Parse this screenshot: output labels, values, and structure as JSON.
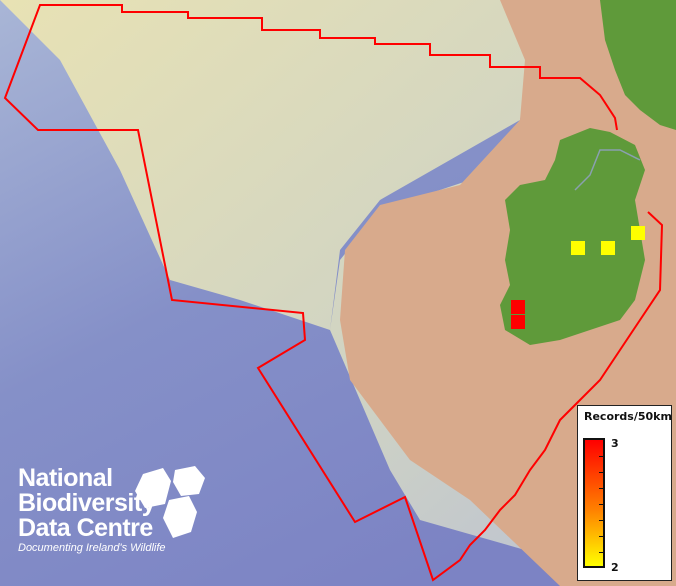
{
  "legend": {
    "title": "Records/50km",
    "max_label": "3",
    "min_label": "2",
    "color_max": "#ff0000",
    "color_min": "#ffff00"
  },
  "logo": {
    "line1": "National",
    "line2": "Biodiversity",
    "line3": "Data Centre",
    "tagline": "Documenting Ireland's Wildlife"
  },
  "records": [
    {
      "grid": "yellow-1",
      "value": 2,
      "color": "#ffff00"
    },
    {
      "grid": "yellow-2",
      "value": 2,
      "color": "#ffff00"
    },
    {
      "grid": "yellow-3",
      "value": 2,
      "color": "#ffff00"
    },
    {
      "grid": "red-1",
      "value": 3,
      "color": "#ff0000"
    },
    {
      "grid": "red-2",
      "value": 3,
      "color": "#ff0000"
    }
  ],
  "colors": {
    "boundary": "#ff0000",
    "land": "#5f9a3a",
    "seabed_shallow": "#d9a98a",
    "shelf": "#e6e0b0",
    "deep_sea": "#7f8cc8"
  }
}
